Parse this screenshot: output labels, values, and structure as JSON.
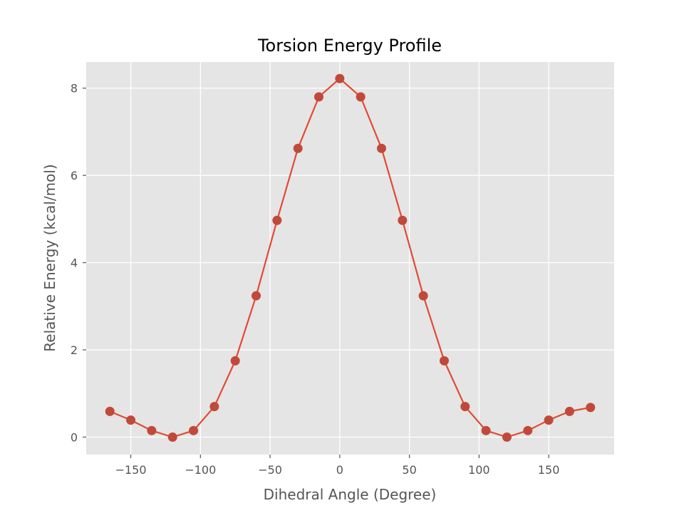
{
  "chart_data": {
    "type": "line",
    "title": "Torsion Energy Profile",
    "xlabel": "Dihedral Angle (Degree)",
    "ylabel": "Relative Energy (kcal/mol)",
    "xlim": [
      -182,
      197
    ],
    "ylim": [
      -0.4,
      8.6
    ],
    "xticks": [
      -150,
      -100,
      -50,
      0,
      50,
      100,
      150
    ],
    "xtick_labels": [
      "−150",
      "−100",
      "−50",
      "0",
      "50",
      "100",
      "150"
    ],
    "yticks": [
      0,
      2,
      4,
      6,
      8
    ],
    "ytick_labels": [
      "0",
      "2",
      "4",
      "6",
      "8"
    ],
    "grid": true,
    "style": "ggplot",
    "colors": {
      "line": "#E24A33",
      "marker": "#C1493A",
      "background": "#E5E5E5",
      "grid": "#FFFFFF"
    },
    "series": [
      {
        "x": [
          -165,
          -150,
          -135,
          -120,
          -105,
          -90,
          -75,
          -60,
          -45,
          -30,
          -15,
          0,
          15,
          30,
          45,
          60,
          75,
          90,
          105,
          120,
          135,
          150,
          165,
          180
        ],
        "values": [
          0.59,
          0.39,
          0.15,
          0.0,
          0.15,
          0.7,
          1.75,
          3.24,
          4.97,
          6.62,
          7.8,
          8.22,
          7.8,
          6.62,
          4.97,
          3.24,
          1.75,
          0.7,
          0.15,
          0.0,
          0.15,
          0.39,
          0.59,
          0.68
        ]
      }
    ]
  }
}
